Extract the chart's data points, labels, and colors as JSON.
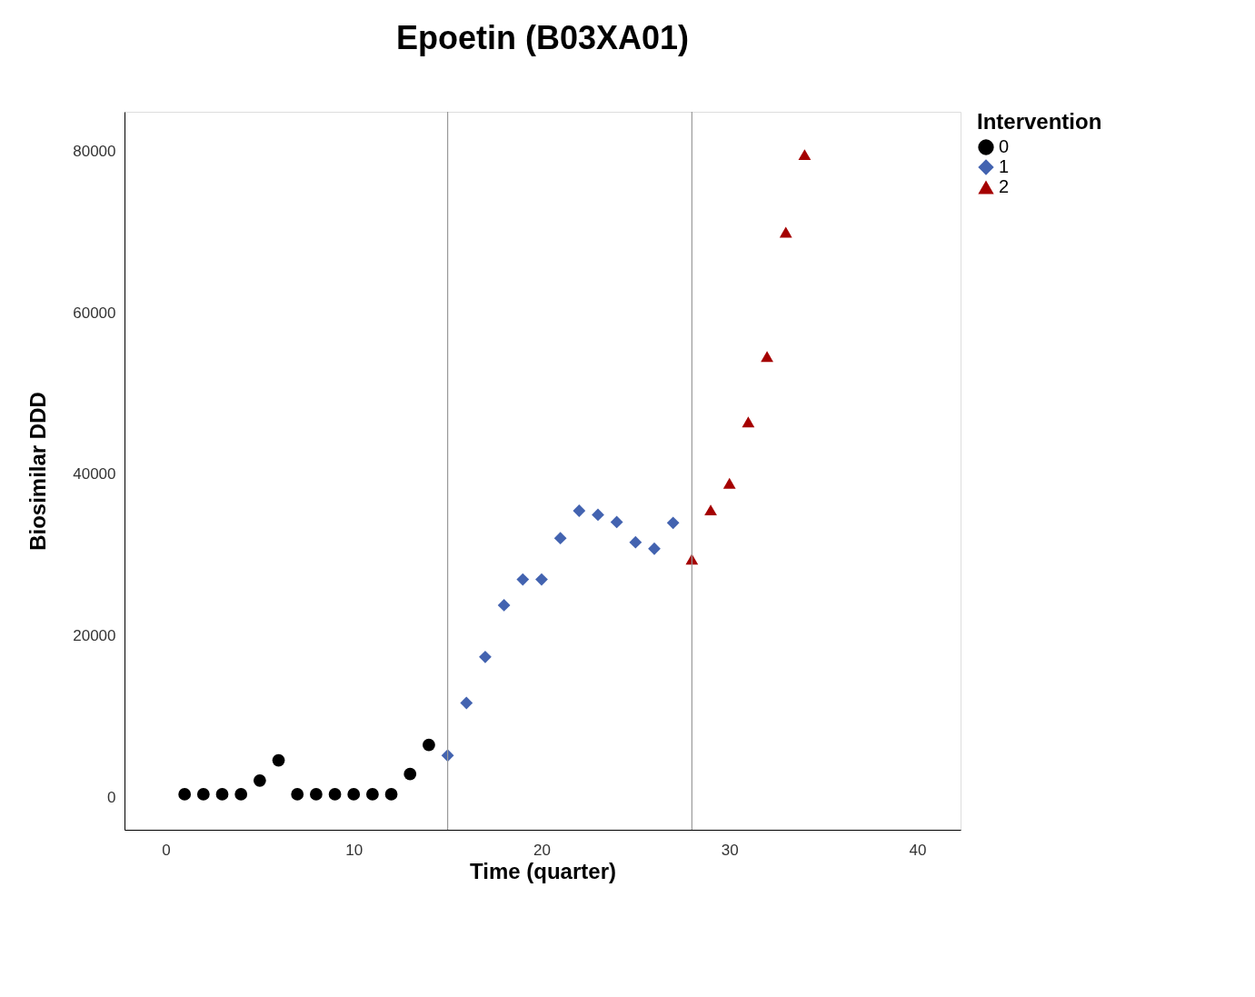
{
  "chart_data": {
    "type": "scatter",
    "title": "Epoetin (B03XA01)",
    "xlabel": "Time (quarter)",
    "ylabel": "Biosimilar DDD",
    "legend_title": "Intervention",
    "series": [
      {
        "name": "0",
        "color": "#000000",
        "marker": "circle",
        "x": [
          1,
          2,
          3,
          4,
          5,
          6,
          7,
          8,
          9,
          10,
          11,
          12,
          13,
          14
        ],
        "values": [
          400,
          400,
          400,
          400,
          2100,
          4600,
          400,
          400,
          400,
          400,
          400,
          400,
          2900,
          6500
        ]
      },
      {
        "name": "1",
        "color": "#4363b0",
        "marker": "diamond",
        "x": [
          15,
          16,
          17,
          18,
          19,
          20,
          21,
          22,
          23,
          24,
          25,
          26,
          27
        ],
        "values": [
          5200,
          11700,
          17400,
          23800,
          27000,
          27000,
          32100,
          35500,
          35000,
          34100,
          31600,
          30800,
          34000
        ]
      },
      {
        "name": "2",
        "color": "#a50000",
        "marker": "triangle",
        "x": [
          28,
          29,
          30,
          31,
          32,
          33,
          34
        ],
        "values": [
          29500,
          35600,
          38900,
          46500,
          54600,
          70000,
          79600
        ]
      }
    ],
    "xlim": [
      -2.2,
      42.3
    ],
    "xticks": [
      0,
      10,
      20,
      30,
      40
    ],
    "ylim": [
      -4000,
      84900
    ],
    "yticks": [
      0,
      20000,
      40000,
      60000,
      80000
    ],
    "ref_lines": [
      {
        "axis": "x",
        "value": 15,
        "color": "#999999"
      },
      {
        "axis": "x",
        "value": 28,
        "color": "#999999"
      }
    ],
    "grid": false,
    "legend": "top right"
  }
}
